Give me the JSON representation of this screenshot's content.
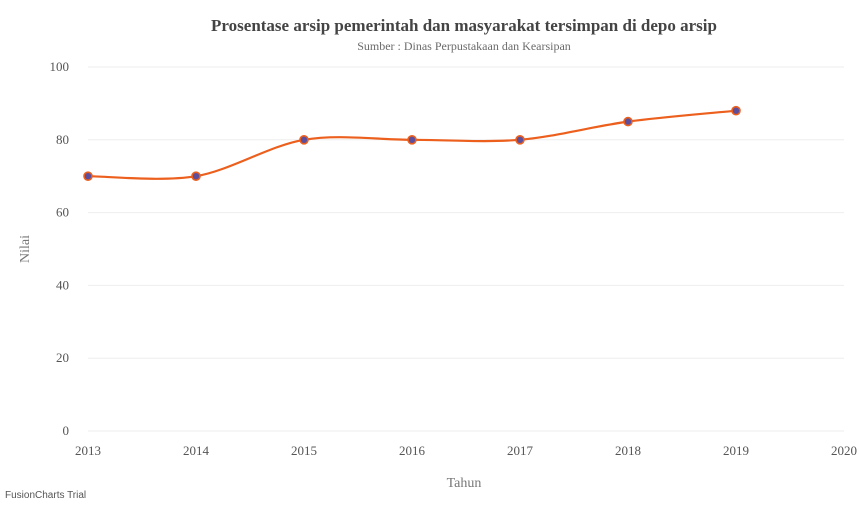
{
  "chart_data": {
    "type": "line",
    "title": "Prosentase arsip pemerintah dan masyarakat tersimpan di depo arsip",
    "subtitle": "Sumber : Dinas Perpustakaan dan Kearsipan",
    "xlabel": "Tahun",
    "ylabel": "Nilai",
    "x_ticks": [
      "2013",
      "2014",
      "2015",
      "2016",
      "2017",
      "2018",
      "2019",
      "2020"
    ],
    "y_ticks": [
      "0",
      "20",
      "40",
      "60",
      "80",
      "100"
    ],
    "xlim": [
      2013,
      2020
    ],
    "ylim": [
      0,
      100
    ],
    "grid": true,
    "series": [
      {
        "x": [
          2013,
          2014,
          2015,
          2016,
          2017,
          2018,
          2019
        ],
        "values": [
          70,
          70,
          80,
          80,
          80,
          85,
          88
        ],
        "line_color": "#ec5f1d",
        "marker_color": "#5d4e9c"
      }
    ]
  },
  "footer": {
    "watermark": "FusionCharts Trial"
  }
}
